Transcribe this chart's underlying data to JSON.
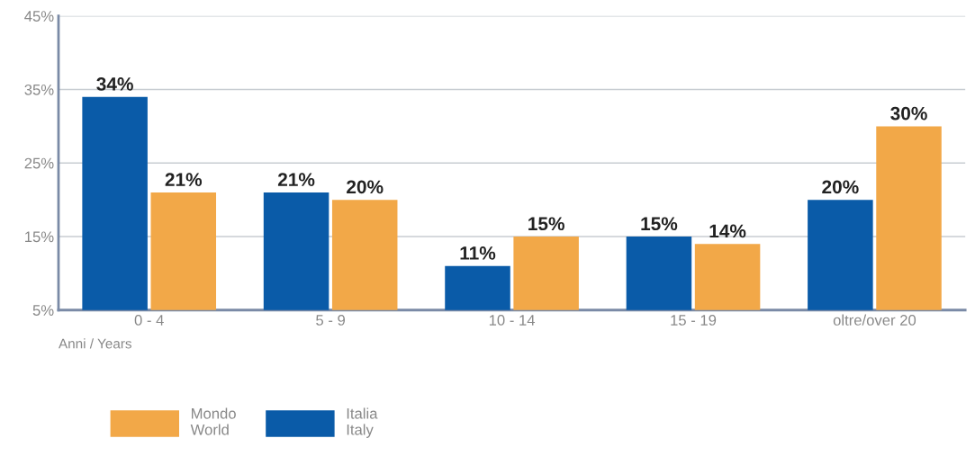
{
  "chart_data": {
    "type": "bar",
    "categories": [
      "0 - 4",
      "5 - 9",
      "10 - 14",
      "15 - 19",
      "oltre/over 20"
    ],
    "xlabel": "Anni / Years",
    "series": [
      {
        "name": "Italia\nItaly",
        "color": "#0a5ba8",
        "values": [
          34,
          21,
          11,
          15,
          20
        ],
        "value_labels": [
          "34%",
          "21%",
          "11%",
          "15%",
          "20%"
        ]
      },
      {
        "name": "Mondo\nWorld",
        "color": "#f2a848",
        "values": [
          21,
          20,
          15,
          14,
          30
        ],
        "value_labels": [
          "21%",
          "20%",
          "15%",
          "14%",
          "30%"
        ]
      }
    ],
    "ylim": [
      5,
      45
    ],
    "yticks": [
      {
        "value": 5,
        "label": "5%"
      },
      {
        "value": 15,
        "label": "15%"
      },
      {
        "value": 25,
        "label": "25%"
      },
      {
        "value": 35,
        "label": "35%"
      },
      {
        "value": 45,
        "label": "45%"
      }
    ],
    "grid": "y",
    "legend": "bottom left"
  }
}
